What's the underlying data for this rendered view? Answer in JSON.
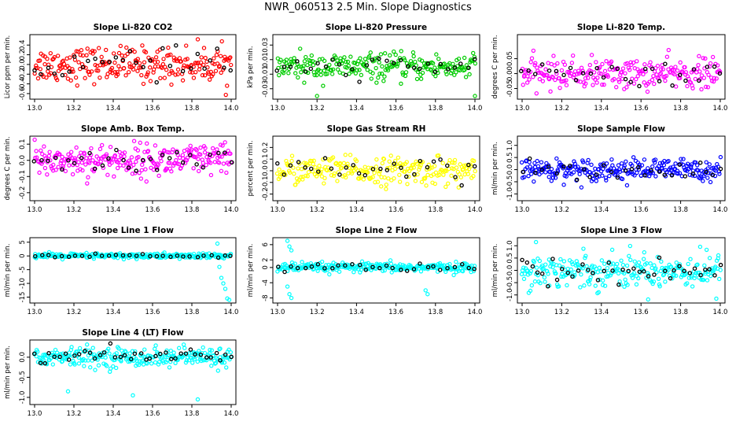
{
  "page": {
    "title": "NWR_060513  2.5 Min. Slope Diagnostics"
  },
  "colors": {
    "red": "#ff0000",
    "green": "#00cc00",
    "magenta": "#ff00ff",
    "yellow": "#ffff00",
    "blue": "#0000ff",
    "cyan": "#00ffff",
    "black": "#000000"
  },
  "chart_data": [
    {
      "type": "scatter",
      "title": "Slope Li-820 CO2",
      "ylabel": "Licor ppm per min.",
      "color": "red",
      "x_range": [
        13.0,
        14.0
      ],
      "xticks": [
        "13.0",
        "13.2",
        "13.4",
        "13.6",
        "13.8",
        "14.0"
      ],
      "yticks": [
        -0.6,
        -0.4,
        -0.2,
        0.0,
        0.2,
        0.4
      ],
      "ytick_labels": [
        "-0.6",
        "-0.4",
        "-0.2",
        "0.0",
        "0.2",
        "0.4"
      ],
      "ylim": [
        -0.65,
        0.55
      ],
      "spread": 0.18,
      "n": 240,
      "n_black": 30,
      "outliers": []
    },
    {
      "type": "scatter",
      "title": "Slope Li-820 Pressure",
      "ylabel": "kPa per min.",
      "color": "green",
      "x_range": [
        13.0,
        14.0
      ],
      "xticks": [
        "13.0",
        "13.2",
        "13.4",
        "13.6",
        "13.8",
        "14.0"
      ],
      "yticks": [
        -0.03,
        -0.01,
        0.01,
        0.03
      ],
      "ytick_labels": [
        "-0.03",
        "-0.01",
        "0.01",
        "0.03"
      ],
      "ylim": [
        -0.04,
        0.04
      ],
      "spread": 0.009,
      "n": 240,
      "n_black": 30,
      "outliers": [
        [
          13.2,
          -0.04
        ],
        [
          14.0,
          -0.04
        ]
      ]
    },
    {
      "type": "scatter",
      "title": "Slope Li-820 Temp.",
      "ylabel": "degrees C per min.",
      "color": "magenta",
      "x_range": [
        13.0,
        14.0
      ],
      "xticks": [
        "13.0",
        "13.2",
        "13.4",
        "13.6",
        "13.8",
        "14.0"
      ],
      "yticks": [
        -0.05,
        0.0,
        0.05
      ],
      "ytick_labels": [
        "-0.05",
        "0.00",
        "0.05"
      ],
      "ylim": [
        -0.075,
        0.12
      ],
      "spread": 0.025,
      "n": 240,
      "n_black": 30,
      "outliers": []
    },
    {
      "type": "scatter",
      "title": "Slope Amb. Box Temp.",
      "ylabel": "degrees C per min.",
      "color": "magenta",
      "x_range": [
        13.0,
        14.0
      ],
      "xticks": [
        "13.0",
        "13.2",
        "13.4",
        "13.6",
        "13.8",
        "14.0"
      ],
      "yticks": [
        -0.2,
        -0.1,
        0.0,
        0.1
      ],
      "ytick_labels": [
        "-0.2",
        "-0.1",
        "0.0",
        "0.1"
      ],
      "ylim": [
        -0.23,
        0.13
      ],
      "spread": 0.05,
      "n": 260,
      "n_black": 30,
      "outliers": []
    },
    {
      "type": "scatter",
      "title": "Slope Gas Stream RH",
      "ylabel": "percent per min.",
      "color": "yellow",
      "x_range": [
        13.0,
        14.0
      ],
      "xticks": [
        "13.0",
        "13.2",
        "13.4",
        "13.6",
        "13.8",
        "14.0"
      ],
      "yticks": [
        -0.2,
        -0.1,
        0.0,
        0.1,
        0.2
      ],
      "ytick_labels": [
        "-0.2",
        "-0.1",
        "0.0",
        "0.1",
        "0.2"
      ],
      "ylim": [
        -0.23,
        0.27
      ],
      "spread": 0.06,
      "n": 240,
      "n_black": 30,
      "outliers": []
    },
    {
      "type": "scatter",
      "title": "Slope Sample Flow",
      "ylabel": "ml/min per min.",
      "color": "blue",
      "x_range": [
        13.0,
        14.0
      ],
      "xticks": [
        "13.0",
        "13.2",
        "13.4",
        "13.6",
        "13.8",
        "14.0"
      ],
      "yticks": [
        -1.0,
        -0.5,
        0.0,
        0.5,
        1.0
      ],
      "ytick_labels": [
        "-1.0",
        "-0.5",
        "0.0",
        "0.5",
        "1.0"
      ],
      "ylim": [
        -1.15,
        1.25
      ],
      "spread": 0.22,
      "n": 260,
      "n_black": 30,
      "outliers": []
    },
    {
      "type": "scatter",
      "title": "Slope Line 1 Flow",
      "ylabel": "ml/min per min.",
      "color": "cyan",
      "x_range": [
        13.0,
        14.0
      ],
      "xticks": [
        "13.0",
        "13.2",
        "13.4",
        "13.6",
        "13.8",
        "14.0"
      ],
      "yticks": [
        -15,
        -10,
        -5,
        0,
        5
      ],
      "ytick_labels": [
        "-15",
        "-10",
        "-5",
        "0",
        "5"
      ],
      "ylim": [
        -16,
        5.5
      ],
      "spread": 0.5,
      "n": 260,
      "n_black": 30,
      "outliers": [
        [
          13.93,
          4.5
        ],
        [
          13.94,
          -4
        ],
        [
          13.95,
          -8
        ],
        [
          13.96,
          -10
        ],
        [
          13.97,
          -12
        ],
        [
          13.98,
          -15.5
        ],
        [
          13.99,
          -16
        ]
      ]
    },
    {
      "type": "scatter",
      "title": "Slope Line 2 Flow",
      "ylabel": "ml/min per min.",
      "color": "cyan",
      "x_range": [
        13.0,
        14.0
      ],
      "xticks": [
        "13.0",
        "13.2",
        "13.4",
        "13.6",
        "13.8",
        "14.0"
      ],
      "yticks": [
        -8,
        -4,
        0,
        2,
        6
      ],
      "ytick_labels": [
        "-8",
        "-4",
        "0",
        "2",
        "6"
      ],
      "ylim": [
        -8.5,
        7
      ],
      "spread": 0.6,
      "n": 260,
      "n_black": 30,
      "outliers": [
        [
          13.05,
          7
        ],
        [
          13.06,
          5.5
        ],
        [
          13.07,
          4.5
        ],
        [
          13.05,
          -5
        ],
        [
          13.06,
          -7
        ],
        [
          13.07,
          -8
        ],
        [
          13.75,
          -6
        ],
        [
          13.76,
          -7
        ]
      ]
    },
    {
      "type": "scatter",
      "title": "Slope Line 3 Flow",
      "ylabel": "ml/min per min.",
      "color": "cyan",
      "x_range": [
        13.0,
        14.0
      ],
      "xticks": [
        "13.0",
        "13.2",
        "13.4",
        "13.6",
        "13.8",
        "14.0"
      ],
      "yticks": [
        -1.0,
        -0.5,
        0.0,
        0.5,
        1.0
      ],
      "ytick_labels": [
        "-1.0",
        "-0.5",
        "0.0",
        "0.5",
        "1.0"
      ],
      "ylim": [
        -1.2,
        1.2
      ],
      "spread": 0.35,
      "n": 260,
      "n_black": 40,
      "outliers": [
        [
          13.07,
          1.15
        ],
        [
          13.98,
          -1.15
        ]
      ]
    },
    {
      "type": "scatter",
      "title": "Slope Line 4 (LT) Flow",
      "ylabel": "ml/min per min.",
      "color": "cyan",
      "x_range": [
        13.0,
        14.0
      ],
      "xticks": [
        "13.0",
        "13.2",
        "13.4",
        "13.6",
        "13.8",
        "14.0"
      ],
      "yticks": [
        -1.0,
        -0.5,
        0.0
      ],
      "ytick_labels": [
        "-1.0",
        "-0.5",
        "0.0"
      ],
      "ylim": [
        -1.1,
        0.35
      ],
      "spread": 0.12,
      "n": 260,
      "n_black": 40,
      "outliers": [
        [
          13.17,
          -0.85
        ],
        [
          13.5,
          -0.95
        ],
        [
          13.83,
          -1.05
        ]
      ]
    }
  ]
}
